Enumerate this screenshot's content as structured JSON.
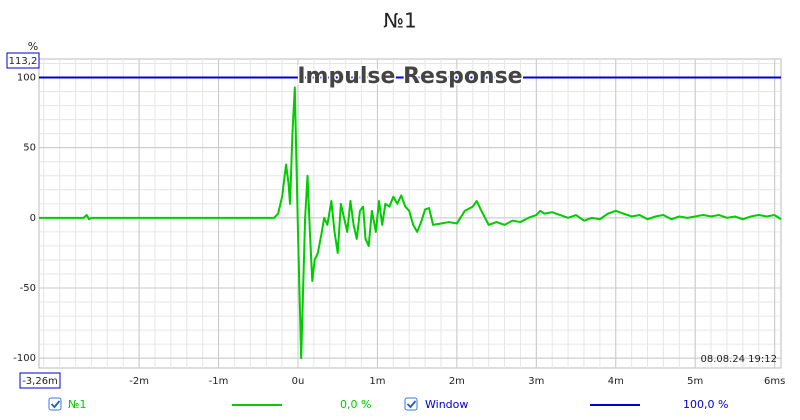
{
  "chart_data": {
    "type": "line",
    "title": "№1",
    "subtitle": "Impulse Response",
    "y_unit": "%",
    "ylim_top_label": "113,2",
    "xlim_left_label": "-3,26m",
    "timestamp": "08.08.24 19:12",
    "xlim": [
      -3.26,
      6.08
    ],
    "ylim": [
      -107,
      113.2
    ],
    "xticks": [
      {
        "value": -2,
        "label": "-2m"
      },
      {
        "value": -1,
        "label": "-1m"
      },
      {
        "value": 0,
        "label": "0u"
      },
      {
        "value": 1,
        "label": "1m"
      },
      {
        "value": 2,
        "label": "2m"
      },
      {
        "value": 3,
        "label": "3m"
      },
      {
        "value": 4,
        "label": "4m"
      },
      {
        "value": 5,
        "label": "5m"
      },
      {
        "value": 6,
        "label": "6ms"
      }
    ],
    "yticks": [
      -100,
      -50,
      0,
      50,
      100
    ],
    "grid": true,
    "minor_grid": true,
    "series": [
      {
        "name": "№1",
        "color": "#00cc00",
        "readout": "0,0 %",
        "x": [
          -3.26,
          -2.7,
          -2.66,
          -2.63,
          -2.6,
          -0.3,
          -0.25,
          -0.2,
          -0.15,
          -0.12,
          -0.1,
          -0.07,
          -0.04,
          -0.02,
          0,
          0.02,
          0.04,
          0.06,
          0.09,
          0.12,
          0.15,
          0.18,
          0.21,
          0.25,
          0.3,
          0.33,
          0.37,
          0.42,
          0.46,
          0.5,
          0.54,
          0.58,
          0.62,
          0.66,
          0.7,
          0.74,
          0.78,
          0.82,
          0.85,
          0.89,
          0.93,
          0.98,
          1.02,
          1.06,
          1.1,
          1.15,
          1.2,
          1.25,
          1.3,
          1.35,
          1.4,
          1.45,
          1.5,
          1.55,
          1.6,
          1.65,
          1.7,
          1.8,
          1.9,
          2.0,
          2.1,
          2.2,
          2.25,
          2.3,
          2.4,
          2.5,
          2.6,
          2.7,
          2.8,
          2.9,
          3.0,
          3.05,
          3.1,
          3.2,
          3.3,
          3.4,
          3.5,
          3.6,
          3.7,
          3.8,
          3.9,
          4.0,
          4.1,
          4.2,
          4.3,
          4.4,
          4.5,
          4.6,
          4.7,
          4.8,
          4.9,
          5.0,
          5.1,
          5.2,
          5.3,
          5.4,
          5.5,
          5.6,
          5.7,
          5.8,
          5.9,
          6.0,
          6.08
        ],
        "values": [
          0,
          0,
          2,
          -1,
          0,
          0,
          3,
          15,
          38,
          25,
          10,
          60,
          93,
          40,
          -10,
          -55,
          -100,
          -60,
          0,
          30,
          -10,
          -45,
          -30,
          -25,
          -10,
          0,
          -5,
          12,
          -10,
          -25,
          10,
          0,
          -10,
          12,
          -5,
          -15,
          5,
          8,
          -15,
          -20,
          5,
          -10,
          12,
          -5,
          10,
          8,
          15,
          10,
          16,
          8,
          5,
          -5,
          -10,
          -3,
          6,
          7,
          -5,
          -4,
          -3,
          -4,
          5,
          8,
          12,
          6,
          -5,
          -3,
          -5,
          -2,
          -3,
          0,
          2,
          5,
          3,
          4,
          2,
          0,
          2,
          -2,
          0,
          -1,
          3,
          5,
          3,
          1,
          2,
          -1,
          1,
          2,
          -1,
          1,
          0,
          1,
          2,
          1,
          2,
          0,
          1,
          -1,
          1,
          2,
          1,
          2,
          -1
        ]
      },
      {
        "name": "Window",
        "color": "#0000cc",
        "readout": "100,0 %",
        "x": [
          -3.26,
          6.08
        ],
        "values": [
          100,
          100
        ]
      }
    ]
  }
}
